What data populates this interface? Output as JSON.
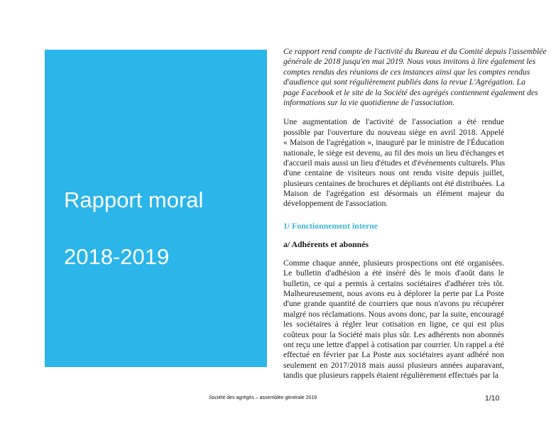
{
  "cover": {
    "title": "Rapport moral",
    "years": "2018-2019",
    "color": "#2bb5e9"
  },
  "intro_lines": [
    "Ce rapport rend compte de l'activité du Bureau et du Comité depuis l'assemblée",
    "générale de 2018 jusqu'en mai 2019. Nous vous invitons à lire également les",
    "comptes rendus des réunions de ces instances ainsi que les comptes rendus",
    "d'audience qui sont régulièrement publiés dans la revue L'Agrégation. La",
    "page Facebook et le site de la Société des agrégés contiennent également des",
    "informations sur la vie quotidienne de l'association."
  ],
  "para1_lines": [
    "Une augmentation de l'activité de l'association a été rendue",
    "possible par l'ouverture du nouveau siège en avril 2018. Appelé",
    "« Maison de l'agrégation », inauguré par le ministre de l'Éducation",
    "nationale, le siège est devenu, au fil des mois un lieu d'échanges et",
    "d'accueil mais aussi un lieu d'études et d'événements culturels. Plus",
    "d'une centaine de visiteurs nous ont rendu visite depuis juillet,",
    "plusieurs centaines de brochures et dépliants ont été distribuées. La",
    "Maison de l'agrégation est désormais un élément majeur du",
    "développement de l'association."
  ],
  "heading1": "1/ Fonctionnement interne",
  "heading1_color": "#3ab3d9",
  "heading2": "a/ Adhérents et abonnés",
  "para2_lines": [
    "Comme chaque année, plusieurs prospections ont été organisées.",
    "Le bulletin d'adhésion a été inséré dès le mois d'août dans le",
    "bulletin, ce qui a permis à certains sociétaires d'adhérer très tôt.",
    "Malheureusement, nous avons eu à déplorer la perte par La Poste",
    "d'une grande quantité de courriers que nous n'avons pu récupérer",
    "malgré nos réclamations. Nous avons donc, par la suite, encouragé",
    "les sociétaires à régler leur cotisation en ligne, ce qui est plus",
    "coûteux pour la Société mais plus sûr. Les adhérents non abonnés",
    "ont reçu une lettre d'appel à cotisation par courrier. Un rappel a été",
    "effectué en février par La Poste aux sociétaires ayant adhéré non",
    "seulement en 2017/2018 mais aussi plusieurs années auparavant,",
    "tandis que plusieurs rappels étaient régulièrement effectués par la"
  ],
  "footer": {
    "text": "Société des agrégés – assemblée générale 2019",
    "page": "1/10"
  }
}
